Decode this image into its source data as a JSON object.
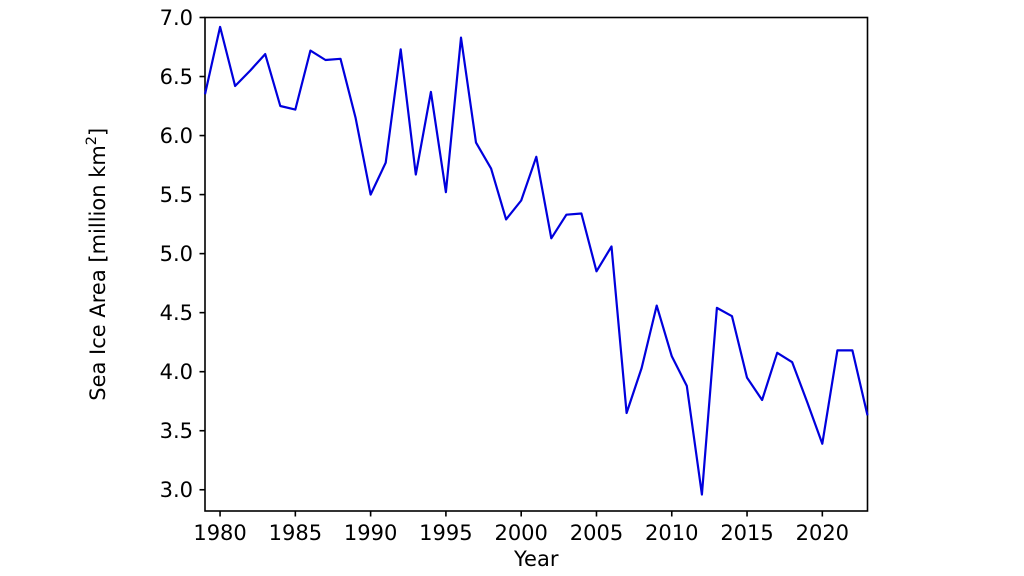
{
  "chart_data": {
    "type": "line",
    "title": "",
    "xlabel": "Year",
    "ylabel": "Sea Ice Area [million km2]",
    "ylabel_parts": {
      "pre": "Sea Ice Area [million km",
      "sup": "2",
      "post": "]"
    },
    "x": [
      1979,
      1980,
      1981,
      1982,
      1983,
      1984,
      1985,
      1986,
      1987,
      1988,
      1989,
      1990,
      1991,
      1992,
      1993,
      1994,
      1995,
      1996,
      1997,
      1998,
      1999,
      2000,
      2001,
      2002,
      2003,
      2004,
      2005,
      2006,
      2007,
      2008,
      2009,
      2010,
      2011,
      2012,
      2013,
      2014,
      2015,
      2016,
      2017,
      2018,
      2019,
      2020,
      2021,
      2022,
      2023
    ],
    "series": [
      {
        "name": "Sea Ice Area",
        "color": "#0000dd",
        "values": [
          6.35,
          6.92,
          6.42,
          6.55,
          6.69,
          6.25,
          6.22,
          6.72,
          6.64,
          6.65,
          6.15,
          5.5,
          5.77,
          6.73,
          5.67,
          6.37,
          5.52,
          6.83,
          5.94,
          5.72,
          5.29,
          5.45,
          5.82,
          5.13,
          5.33,
          5.34,
          4.85,
          5.06,
          3.65,
          4.03,
          4.56,
          4.13,
          3.88,
          2.96,
          4.54,
          4.47,
          3.95,
          3.76,
          4.16,
          4.08,
          3.74,
          3.39,
          4.18,
          4.18,
          3.63
        ]
      }
    ],
    "xlim": [
      1979,
      2023
    ],
    "ylim": [
      2.82,
      7.0
    ],
    "x_ticks": [
      1980,
      1985,
      1990,
      1995,
      2000,
      2005,
      2010,
      2015,
      2020
    ],
    "y_ticks": [
      3.0,
      3.5,
      4.0,
      4.5,
      5.0,
      5.5,
      6.0,
      6.5,
      7.0
    ],
    "grid": false,
    "legend": "none",
    "line_color": "#0000dd",
    "axis_color": "#000000",
    "background": "#ffffff"
  }
}
